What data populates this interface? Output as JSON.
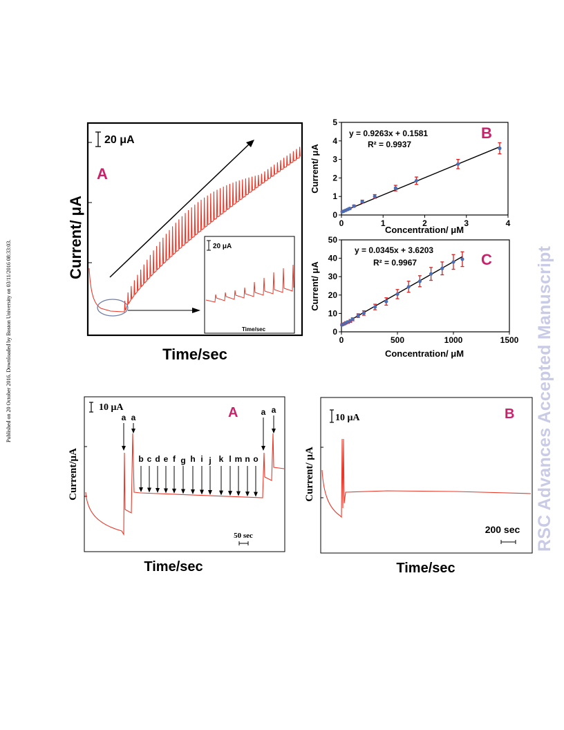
{
  "margin_note": "Published on 20 October 2016. Downloaded by Boston University on 03/11/2016 08:33:03.",
  "watermark": "RSC Advances Accepted Manuscript",
  "colors": {
    "trace": "#e8392a",
    "panel_letter": "#c8226b",
    "points": "#4a6fb5",
    "error_bars": "#d81f1f",
    "fit": "#000000"
  },
  "panel_top_A": {
    "letter": "A",
    "scale_bar": "20 μA",
    "ylabel": "Current/ μA",
    "xlabel": "Time/sec",
    "inset": {
      "scale_bar": "20 μA",
      "xlabel": "Time/sec"
    }
  },
  "panel_bottom_A": {
    "letter": "A",
    "scale_bar": "10 μA",
    "ylabel": "Current/μA",
    "xlabel": "Time/sec",
    "time_bar": "50 sec",
    "arrows_a": [
      "a",
      "a",
      "a",
      "a"
    ],
    "arrows": [
      "b",
      "c",
      "d",
      "e",
      "f",
      "g",
      "h",
      "i",
      "j",
      "k",
      "l",
      "m",
      "n",
      "o"
    ]
  },
  "panel_bottom_B": {
    "letter": "B",
    "scale_bar": "10 μA",
    "ylabel": "Current/ μA",
    "xlabel": "Time/sec",
    "time_bar": "200 sec"
  },
  "chart_data": [
    {
      "panel": "B",
      "type": "scatter",
      "equation": "y = 0.9263x + 0.1581",
      "r2": "R² = 0.9937",
      "xlabel": "Concentration/ μM",
      "ylabel": "Current/ μA",
      "xlim": [
        0,
        4
      ],
      "ylim": [
        0,
        5
      ],
      "xticks": [
        0,
        1,
        2,
        3,
        4
      ],
      "yticks": [
        0,
        1,
        2,
        3,
        4,
        5
      ],
      "fit": {
        "slope": 0.9263,
        "intercept": 0.1581
      },
      "x": [
        0.02,
        0.05,
        0.1,
        0.15,
        0.2,
        0.3,
        0.5,
        0.8,
        1.3,
        1.8,
        2.8,
        3.8
      ],
      "y": [
        0.18,
        0.2,
        0.25,
        0.3,
        0.35,
        0.48,
        0.72,
        1.0,
        1.45,
        1.85,
        2.75,
        3.6
      ],
      "err": [
        0.03,
        0.03,
        0.04,
        0.04,
        0.05,
        0.06,
        0.08,
        0.1,
        0.15,
        0.2,
        0.25,
        0.3
      ]
    },
    {
      "panel": "C",
      "type": "scatter",
      "equation": "y = 0.0345x + 3.6203",
      "r2": "R² = 0.9967",
      "xlabel": "Concentration/ μM",
      "ylabel": "Current/ μA",
      "xlim": [
        0,
        1500
      ],
      "ylim": [
        0,
        50
      ],
      "xticks": [
        0,
        500,
        1000,
        1500
      ],
      "yticks": [
        0,
        10,
        20,
        30,
        40,
        50
      ],
      "fit": {
        "slope": 0.0345,
        "intercept": 3.6203
      },
      "x": [
        5,
        10,
        20,
        30,
        40,
        60,
        80,
        100,
        150,
        200,
        300,
        400,
        500,
        600,
        700,
        800,
        900,
        1000,
        1080
      ],
      "y": [
        3.8,
        4.0,
        4.2,
        4.5,
        4.9,
        5.3,
        5.9,
        6.8,
        8.8,
        10.2,
        13.5,
        16.5,
        20.5,
        24.5,
        27.5,
        31.5,
        34.5,
        38.0,
        39.5
      ],
      "err": [
        0.5,
        0.5,
        0.5,
        0.6,
        0.6,
        0.7,
        0.8,
        0.8,
        1.0,
        1.2,
        1.5,
        2.0,
        2.5,
        3.0,
        3.0,
        3.5,
        3.5,
        4.0,
        4.0
      ]
    }
  ]
}
